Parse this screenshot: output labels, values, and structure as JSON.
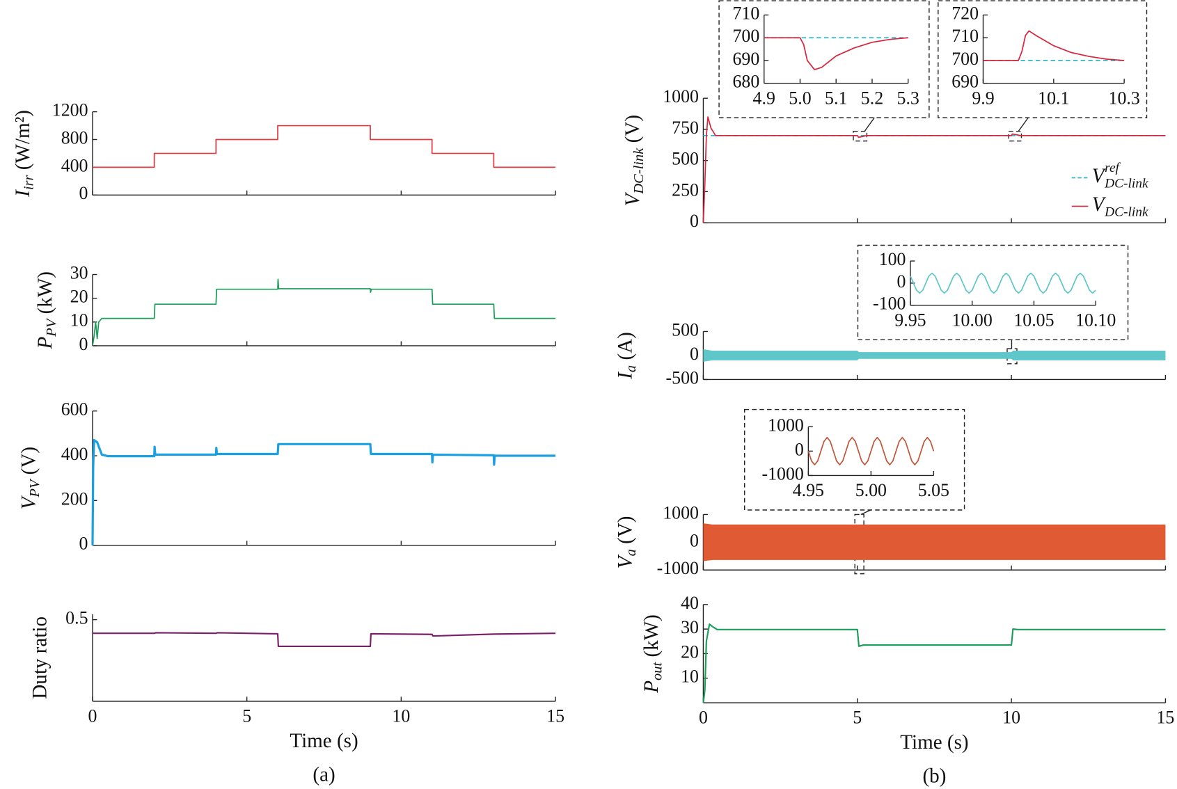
{
  "chart_data": [
    {
      "type": "line",
      "ylabel": [
        "I",
        "irr",
        " (W/m²)"
      ],
      "xlim": [
        0,
        15
      ],
      "xticks": [
        0,
        5,
        10,
        15
      ],
      "xtick_labels": false,
      "ylim": [
        0,
        1200
      ],
      "yticks": [
        0,
        400,
        800,
        1200
      ],
      "series": [
        {
          "color": "#e03a3e",
          "x": [
            0,
            2,
            2,
            4,
            4,
            6,
            6,
            9,
            9,
            11,
            11,
            13,
            13,
            15
          ],
          "values": [
            400,
            400,
            600,
            600,
            800,
            800,
            1000,
            1000,
            800,
            800,
            600,
            600,
            400,
            400
          ]
        }
      ]
    },
    {
      "type": "line",
      "ylabel": [
        "P",
        "PV",
        " (kW)"
      ],
      "xlim": [
        0,
        15
      ],
      "xticks": [
        0,
        5,
        10,
        15
      ],
      "xtick_labels": false,
      "ylim": [
        0,
        30
      ],
      "yticks": [
        0,
        10,
        20,
        30
      ],
      "series": [
        {
          "color": "#1a9e5a",
          "x": [
            0,
            0.05,
            0.1,
            0.15,
            0.2,
            0.3,
            2,
            2.02,
            4,
            4.02,
            6,
            6.01,
            6.03,
            9,
            9.01,
            9.03,
            11,
            11.02,
            13,
            13.02,
            15
          ],
          "values": [
            0,
            4,
            10,
            3,
            10,
            11.5,
            11.5,
            17.5,
            17.5,
            23.8,
            23.8,
            28,
            24,
            24,
            22.5,
            23.8,
            23.8,
            17.5,
            17.5,
            11.5,
            11.5
          ]
        }
      ]
    },
    {
      "type": "line",
      "ylabel": [
        "V",
        "PV",
        " (V)"
      ],
      "xlim": [
        0,
        15
      ],
      "xticks": [
        0,
        5,
        10,
        15
      ],
      "xtick_labels": false,
      "ylim": [
        0,
        600
      ],
      "yticks": [
        0,
        200,
        400,
        600
      ],
      "series": [
        {
          "color": "#1ba1e2",
          "width": 3,
          "x": [
            0,
            0.02,
            0.05,
            0.15,
            0.3,
            0.5,
            2,
            2.01,
            2.03,
            4,
            4.01,
            4.03,
            6,
            6.02,
            9,
            9.02,
            11,
            11.01,
            11.03,
            13,
            13.01,
            13.03,
            15
          ],
          "values": [
            0,
            350,
            470,
            460,
            405,
            398,
            398,
            440,
            405,
            405,
            435,
            408,
            408,
            452,
            452,
            408,
            408,
            370,
            405,
            402,
            360,
            400,
            400
          ]
        }
      ]
    },
    {
      "type": "line",
      "ylabel": [
        "Duty ratio"
      ],
      "xlabel": "Time (s)",
      "caption": "(a)",
      "xlim": [
        0,
        15
      ],
      "xticks": [
        0,
        5,
        10,
        15
      ],
      "ylim": [
        0.2,
        0.52
      ],
      "yticks": [
        0.5
      ],
      "series": [
        {
          "color": "#7b1f6a",
          "width": 2,
          "x": [
            0,
            2,
            2.05,
            4,
            4.05,
            6,
            6.02,
            9,
            9.02,
            11,
            11.03,
            13,
            15
          ],
          "values": [
            0.45,
            0.45,
            0.452,
            0.45,
            0.452,
            0.448,
            0.402,
            0.402,
            0.448,
            0.446,
            0.44,
            0.447,
            0.45
          ]
        }
      ]
    },
    {
      "type": "line",
      "ylabel": [
        "V",
        "DC-link",
        " (V)"
      ],
      "legend": "lower right",
      "xlim": [
        0,
        15
      ],
      "xticks": [
        0,
        5,
        10,
        15
      ],
      "xtick_labels": false,
      "ylim": [
        0,
        1000
      ],
      "yticks": [
        0,
        250,
        500,
        750,
        1000
      ],
      "series": [
        {
          "name": "V",
          "name_sub": "DC-link",
          "name_sup": "ref",
          "color": "#2fb8c8",
          "dash": true,
          "x": [
            0,
            15
          ],
          "values": [
            700,
            700
          ]
        },
        {
          "name": "V",
          "name_sub": "DC-link",
          "color": "#d7263d",
          "x": [
            0,
            0.05,
            0.1,
            0.15,
            0.25,
            0.4,
            5,
            5.04,
            5.3,
            10,
            10.03,
            10.3,
            15
          ],
          "values": [
            0,
            300,
            700,
            850,
            760,
            700,
            700,
            686,
            700,
            700,
            713,
            700,
            700
          ]
        }
      ]
    },
    {
      "type": "line",
      "xlim": [
        4.9,
        5.3
      ],
      "xticks": [
        4.9,
        {
          "value": 5,
          "label": "5.0"
        },
        5.1,
        5.2,
        5.3
      ],
      "ylim": [
        680,
        710
      ],
      "yticks": [
        680,
        690,
        700,
        710
      ],
      "series": [
        {
          "color": "#2fb8c8",
          "dash": true,
          "x": [
            4.9,
            5.3
          ],
          "values": [
            700,
            700
          ]
        },
        {
          "color": "#d7263d",
          "x": [
            4.9,
            5.0,
            5.01,
            5.02,
            5.04,
            5.06,
            5.1,
            5.15,
            5.2,
            5.25,
            5.3
          ],
          "values": [
            700,
            700,
            697,
            690,
            686,
            687,
            692,
            695.5,
            698,
            699.3,
            700
          ]
        }
      ]
    },
    {
      "type": "line",
      "xlim": [
        9.9,
        10.3
      ],
      "xticks": [
        9.9,
        10.1,
        10.3
      ],
      "ylim": [
        690,
        720
      ],
      "yticks": [
        690,
        700,
        710,
        720
      ],
      "series": [
        {
          "color": "#2fb8c8",
          "dash": true,
          "x": [
            9.9,
            10.3
          ],
          "values": [
            700,
            700
          ]
        },
        {
          "color": "#d7263d",
          "x": [
            9.9,
            10.0,
            10.01,
            10.02,
            10.03,
            10.05,
            10.1,
            10.15,
            10.2,
            10.25,
            10.3
          ],
          "values": [
            700,
            700,
            704,
            711,
            713,
            711,
            706.5,
            703.5,
            701.8,
            700.6,
            700
          ]
        }
      ]
    },
    {
      "type": "band",
      "ylabel": [
        "I",
        "a",
        " (A)"
      ],
      "xlim": [
        0,
        15
      ],
      "xticks": [
        0,
        5,
        10,
        15
      ],
      "xtick_labels": false,
      "ylim": [
        -500,
        500
      ],
      "yticks": [
        -500,
        0,
        500
      ],
      "series": [
        {
          "color": "#5fc6c9",
          "x": [
            0,
            0.3,
            5,
            5.05,
            10,
            10.05,
            15
          ],
          "upper": [
            130,
            100,
            100,
            70,
            70,
            100,
            100
          ],
          "lower": [
            -130,
            -100,
            -100,
            -70,
            -70,
            -100,
            -100
          ]
        }
      ]
    },
    {
      "type": "line",
      "xlim": [
        9.95,
        10.1
      ],
      "xticks": [
        9.95,
        {
          "value": 10,
          "label": "10.00"
        },
        10.05,
        {
          "value": 10.1,
          "label": "10.10"
        }
      ],
      "ylim": [
        -100,
        100
      ],
      "yticks": [
        -100,
        0,
        100
      ],
      "series": [
        {
          "color": "#5fc6c9",
          "x": [
            9.95,
            9.9525,
            9.955,
            9.9575,
            9.96,
            9.9625,
            9.965,
            9.9675,
            9.97,
            9.9725,
            9.975,
            9.9775,
            9.98,
            9.9825,
            9.985,
            9.9875,
            9.99,
            9.9925,
            9.995,
            9.9975,
            10,
            10.0025,
            10.005,
            10.0075,
            10.01,
            10.0125,
            10.015,
            10.0175,
            10.02,
            10.0225,
            10.025,
            10.0275,
            10.03,
            10.0325,
            10.035,
            10.0375,
            10.04,
            10.0425,
            10.045,
            10.0475,
            10.05,
            10.0525,
            10.055,
            10.0575,
            10.06,
            10.0625,
            10.065,
            10.0675,
            10.07,
            10.0725,
            10.075,
            10.0775,
            10.08,
            10.0825,
            10.085,
            10.0875,
            10.09,
            10.0925,
            10.095,
            10.0975,
            10.1
          ],
          "values": [
            32,
            0,
            -32,
            -45,
            -32,
            0,
            32,
            45,
            32,
            0,
            -32,
            -45,
            -32,
            0,
            32,
            45,
            32,
            0,
            -32,
            -45,
            -32,
            0,
            32,
            45,
            32,
            0,
            -32,
            -45,
            -32,
            0,
            32,
            45,
            32,
            0,
            -32,
            -45,
            -32,
            0,
            32,
            45,
            32,
            0,
            -32,
            -45,
            -32,
            0,
            32,
            45,
            32,
            0,
            -32,
            -45,
            -32,
            0,
            32,
            45,
            32,
            0,
            -32,
            -45,
            -32
          ]
        }
      ]
    },
    {
      "type": "band",
      "ylabel": [
        "V",
        "a",
        " (V)"
      ],
      "xlim": [
        0,
        15
      ],
      "xticks": [
        0,
        5,
        10,
        15
      ],
      "xtick_labels": false,
      "ylim": [
        -1000,
        1000
      ],
      "yticks": [
        -1000,
        0,
        1000
      ],
      "series": [
        {
          "color": "#e05a33",
          "x": [
            0,
            0.3,
            15
          ],
          "upper": [
            680,
            640,
            640
          ],
          "lower": [
            -680,
            -640,
            -640
          ]
        }
      ]
    },
    {
      "type": "line",
      "xlim": [
        4.95,
        5.05
      ],
      "xticks": [
        4.95,
        {
          "value": 5,
          "label": "5.00"
        },
        5.05
      ],
      "ylim": [
        -1000,
        1000
      ],
      "yticks": [
        -1000,
        0,
        1000
      ],
      "series": [
        {
          "color": "#c2553a",
          "x": [
            4.95,
            4.9525,
            4.955,
            4.9575,
            4.96,
            4.9625,
            4.965,
            4.9675,
            4.97,
            4.9725,
            4.975,
            4.9775,
            4.98,
            4.9825,
            4.985,
            4.9875,
            4.99,
            4.9925,
            4.995,
            4.9975,
            5,
            5.0025,
            5.005,
            5.0075,
            5.01,
            5.0125,
            5.015,
            5.0175,
            5.02,
            5.0225,
            5.025,
            5.0275,
            5.03,
            5.0325,
            5.035,
            5.0375,
            5.04,
            5.0425,
            5.045,
            5.0475,
            5.05
          ],
          "values": [
            0,
            -400,
            -560,
            -400,
            0,
            400,
            560,
            400,
            0,
            -400,
            -560,
            -400,
            0,
            400,
            560,
            400,
            0,
            -400,
            -560,
            -400,
            0,
            400,
            560,
            400,
            0,
            -400,
            -560,
            -400,
            0,
            400,
            560,
            400,
            0,
            -400,
            -560,
            -400,
            0,
            400,
            560,
            400,
            0
          ]
        }
      ]
    },
    {
      "type": "line",
      "ylabel": [
        "P",
        "out",
        " (kW)"
      ],
      "xlabel": "Time (s)",
      "caption": "(b)",
      "xlim": [
        0,
        15
      ],
      "xticks": [
        0,
        5,
        10,
        15
      ],
      "ylim": [
        0,
        40
      ],
      "yticks": [
        10,
        20,
        30,
        40
      ],
      "series": [
        {
          "color": "#1a9e5a",
          "width": 2,
          "x": [
            0,
            0.05,
            0.1,
            0.2,
            0.3,
            0.45,
            5,
            5.05,
            5.2,
            10,
            10.05,
            10.2,
            15
          ],
          "values": [
            0,
            5,
            25,
            32,
            31,
            29.8,
            29.8,
            23,
            23.5,
            23.5,
            30,
            29.8,
            29.8
          ]
        }
      ]
    }
  ]
}
